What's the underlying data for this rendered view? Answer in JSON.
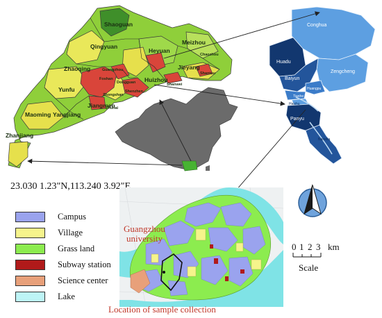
{
  "guangdong_map": {
    "labels": [
      {
        "id": "shaoguan",
        "text": "Shaoguan"
      },
      {
        "id": "qingyuan",
        "text": "Qingyuan"
      },
      {
        "id": "heyuan",
        "text": "Heyuan"
      },
      {
        "id": "meizhou",
        "text": "Meizhou"
      },
      {
        "id": "chaozhou",
        "text": "Chaozhou"
      },
      {
        "id": "zhaoqing",
        "text": "Zhaoqing"
      },
      {
        "id": "guangzhou",
        "text": "Guangzhou"
      },
      {
        "id": "jieyang",
        "text": "Jieyang"
      },
      {
        "id": "shantou",
        "text": "Shantou"
      },
      {
        "id": "foshan",
        "text": "Foshan"
      },
      {
        "id": "dongguan",
        "text": "Dongguan"
      },
      {
        "id": "huizhou",
        "text": "Huizhou"
      },
      {
        "id": "yunfu",
        "text": "Yunfu"
      },
      {
        "id": "shenzhen",
        "text": "Shenzhen"
      },
      {
        "id": "shanwei",
        "text": "Shanwei"
      },
      {
        "id": "zhongshan",
        "text": "Zhongshan"
      },
      {
        "id": "jiangmen",
        "text": "Jiangmen"
      },
      {
        "id": "zhuhai",
        "text": "Zhuhai"
      },
      {
        "id": "maoming",
        "text": "Maoming"
      },
      {
        "id": "yangjiang",
        "text": "Yangjiang"
      },
      {
        "id": "zhanjiang",
        "text": "Zhanjiang"
      }
    ]
  },
  "guangzhou_map": {
    "labels": [
      {
        "id": "conghua",
        "text": "Conghua"
      },
      {
        "id": "huadu",
        "text": "Huadu"
      },
      {
        "id": "zengcheng",
        "text": "Zengcheng"
      },
      {
        "id": "baiyun",
        "text": "Baiyun"
      },
      {
        "id": "huangpu",
        "text": "Huangpu"
      },
      {
        "id": "tianhe",
        "text": "Tianhe"
      },
      {
        "id": "haizhu",
        "text": "Haizhu"
      },
      {
        "id": "panyu",
        "text": "Panyu"
      },
      {
        "id": "nansha",
        "text": "Nansha"
      }
    ]
  },
  "coordinates": "23.030 1.23\"N,113.240 3.92\"E",
  "legend": [
    {
      "label": "Campus",
      "color": "#9aa3ee"
    },
    {
      "label": "Village",
      "color": "#f6f48c"
    },
    {
      "label": "Grass land",
      "color": "#8cec4f"
    },
    {
      "label": "Subway station",
      "color": "#b01a1a"
    },
    {
      "label": "Science center",
      "color": "#e8a07a"
    },
    {
      "label": "Lake",
      "color": "#bdf4f6"
    }
  ],
  "campus_map": {
    "university_label_line1": "Guangzhou",
    "university_label_line2": "university",
    "sample_label": "Location of sample collection"
  },
  "north_arrow": {
    "letter": "N"
  },
  "scale": {
    "ticks": [
      "0",
      "1",
      "2",
      "3"
    ],
    "unit": "km",
    "title": "Scale"
  }
}
